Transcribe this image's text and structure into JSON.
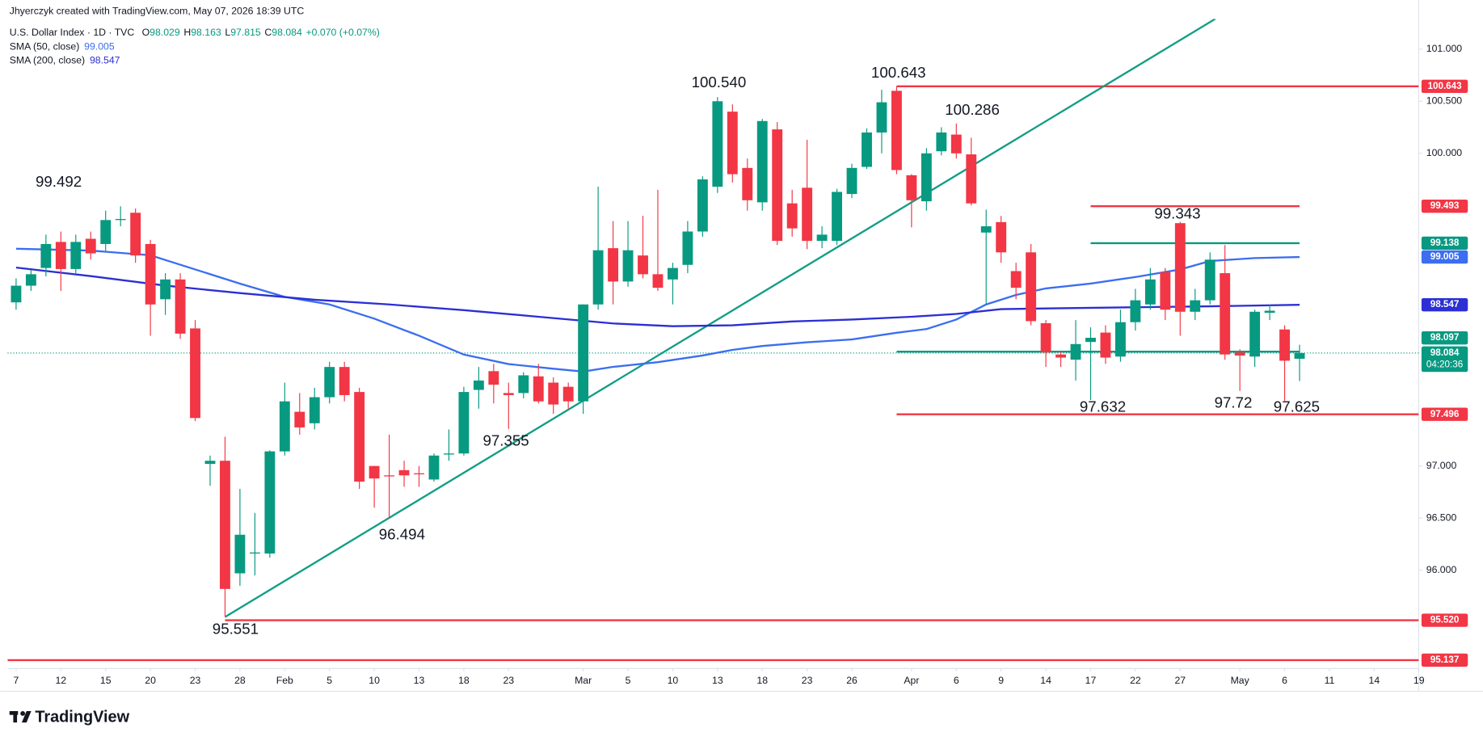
{
  "header": {
    "credit": "Jhyerczyk created with TradingView.com, May 07, 2026 18:39 UTC",
    "symbol": "U.S. Dollar Index · 1D · TVC",
    "ohlc_labels": [
      "O",
      "H",
      "L",
      "C"
    ],
    "change": "+0.070 (+0.07%)",
    "countdown": "04:20:36",
    "logo": "TradingView"
  },
  "chart_data": {
    "type": "candlestick",
    "colors": {
      "up": "#089981",
      "down": "#f23645"
    },
    "open": [
      98.57,
      98.73,
      98.9,
      99.15,
      98.89,
      99.18,
      99.13,
      99.36,
      99.43,
      99.13,
      98.6,
      98.79,
      98.32,
      97.02,
      97.05,
      95.97,
      96.16,
      96.16,
      97.14,
      97.52,
      97.41,
      97.66,
      97.95,
      97.71,
      97.0,
      96.91,
      96.96,
      96.93,
      96.87,
      97.11,
      97.12,
      97.73,
      97.91,
      97.7,
      97.7,
      97.86,
      97.8,
      97.76,
      97.62,
      98.55,
      99.09,
      98.77,
      99.02,
      98.84,
      98.79,
      98.93,
      99.25,
      99.68,
      100.4,
      99.86,
      99.53,
      100.23,
      99.52,
      99.67,
      99.16,
      99.16,
      99.61,
      99.87,
      100.2,
      100.6,
      99.79,
      99.54,
      100.02,
      100.18,
      99.99,
      99.24,
      99.34,
      98.87,
      99.05,
      98.37,
      98.07,
      98.02,
      98.19,
      98.28,
      98.05,
      98.38,
      98.55,
      98.86,
      99.33,
      98.48,
      98.59,
      98.85,
      98.09,
      98.05,
      98.47,
      98.31,
      98.029
    ],
    "high": [
      98.8,
      98.88,
      99.22,
      99.25,
      99.22,
      99.25,
      99.45,
      99.492,
      99.47,
      99.17,
      98.85,
      98.85,
      98.4,
      97.1,
      97.28,
      96.78,
      96.55,
      97.15,
      97.8,
      97.7,
      97.75,
      98.0,
      98.0,
      97.75,
      97.0,
      97.3,
      97.05,
      97.0,
      97.12,
      97.35,
      97.76,
      97.95,
      97.98,
      97.8,
      97.9,
      97.98,
      97.85,
      97.8,
      98.55,
      99.68,
      99.35,
      99.35,
      99.4,
      99.65,
      98.95,
      99.35,
      99.78,
      100.54,
      100.47,
      99.95,
      100.33,
      100.3,
      99.65,
      100.13,
      99.3,
      99.66,
      99.9,
      100.24,
      100.61,
      100.643,
      99.8,
      100.05,
      100.25,
      100.286,
      100.15,
      99.46,
      99.4,
      98.95,
      99.13,
      98.4,
      98.1,
      98.4,
      98.33,
      98.35,
      98.5,
      98.7,
      98.9,
      98.9,
      99.343,
      98.7,
      99.05,
      99.12,
      98.12,
      98.5,
      98.55,
      98.35,
      98.163
    ],
    "low": [
      98.5,
      98.68,
      98.82,
      98.68,
      98.85,
      98.98,
      99.05,
      99.3,
      98.95,
      98.25,
      98.45,
      98.22,
      97.43,
      96.81,
      95.551,
      95.85,
      95.95,
      96.12,
      97.1,
      97.3,
      97.35,
      97.6,
      97.62,
      96.78,
      96.6,
      96.494,
      96.8,
      96.8,
      96.85,
      97.05,
      97.1,
      97.55,
      97.6,
      97.355,
      97.65,
      97.6,
      97.5,
      97.55,
      97.5,
      98.5,
      98.55,
      98.72,
      98.8,
      98.68,
      98.55,
      98.85,
      99.2,
      99.62,
      99.72,
      99.45,
      99.45,
      99.12,
      99.2,
      99.08,
      99.09,
      99.12,
      99.57,
      99.85,
      100.0,
      99.8,
      99.29,
      99.45,
      99.98,
      99.95,
      99.5,
      98.55,
      98.95,
      98.6,
      98.35,
      97.95,
      97.95,
      97.82,
      97.632,
      97.98,
      98.0,
      98.3,
      98.5,
      98.4,
      98.25,
      98.4,
      98.55,
      98.02,
      97.72,
      97.95,
      98.4,
      97.625,
      97.815
    ],
    "close": [
      98.73,
      98.84,
      99.13,
      98.89,
      99.15,
      99.04,
      99.36,
      99.37,
      99.02,
      98.55,
      98.79,
      98.27,
      97.46,
      97.05,
      95.82,
      96.34,
      96.17,
      97.14,
      97.62,
      97.37,
      97.66,
      97.95,
      97.68,
      96.85,
      96.88,
      96.9,
      96.91,
      96.92,
      97.1,
      97.12,
      97.71,
      97.82,
      97.78,
      97.68,
      97.87,
      97.62,
      97.59,
      97.62,
      98.55,
      99.07,
      98.77,
      99.07,
      98.84,
      98.71,
      98.9,
      99.25,
      99.75,
      100.5,
      99.8,
      99.55,
      100.31,
      99.16,
      99.28,
      99.16,
      99.22,
      99.63,
      99.86,
      100.2,
      100.49,
      99.84,
      99.55,
      100.0,
      100.2,
      100.0,
      99.52,
      99.3,
      99.05,
      98.71,
      98.39,
      98.09,
      98.04,
      98.17,
      98.23,
      98.04,
      98.38,
      98.59,
      98.79,
      98.5,
      98.48,
      98.59,
      98.98,
      98.07,
      98.06,
      98.48,
      98.49,
      98.01,
      98.084
    ],
    "xlim": [
      -0.57,
      93.98
    ],
    "ylim": [
      95.056,
      101.29
    ],
    "yticks": [
      {
        "value": 96,
        "label": "96.000"
      },
      {
        "value": 96.5,
        "label": "96.500"
      },
      {
        "value": 97,
        "label": "97.000"
      },
      {
        "value": 100,
        "label": "100.000"
      },
      {
        "value": 100.5,
        "label": "100.500"
      },
      {
        "value": 101,
        "label": "101.000"
      }
    ],
    "xticks": [
      {
        "value": 0,
        "label": "7"
      },
      {
        "value": 3,
        "label": "12"
      },
      {
        "value": 6,
        "label": "15"
      },
      {
        "value": 9,
        "label": "20"
      },
      {
        "value": 12,
        "label": "23"
      },
      {
        "value": 15,
        "label": "28"
      },
      {
        "value": 18,
        "label": "Feb"
      },
      {
        "value": 21,
        "label": "5"
      },
      {
        "value": 24,
        "label": "10"
      },
      {
        "value": 27,
        "label": "13"
      },
      {
        "value": 30,
        "label": "18"
      },
      {
        "value": 33,
        "label": "23"
      },
      {
        "value": 38,
        "label": "Mar"
      },
      {
        "value": 41,
        "label": "5"
      },
      {
        "value": 44,
        "label": "10"
      },
      {
        "value": 47,
        "label": "13"
      },
      {
        "value": 50,
        "label": "18"
      },
      {
        "value": 53,
        "label": "23"
      },
      {
        "value": 56,
        "label": "26"
      },
      {
        "value": 60,
        "label": "Apr"
      },
      {
        "value": 63,
        "label": "6"
      },
      {
        "value": 66,
        "label": "9"
      },
      {
        "value": 69,
        "label": "14"
      },
      {
        "value": 72,
        "label": "17"
      },
      {
        "value": 75,
        "label": "22"
      },
      {
        "value": 78,
        "label": "27"
      },
      {
        "value": 82,
        "label": "May"
      },
      {
        "value": 85,
        "label": "6"
      },
      {
        "value": 88,
        "label": "11"
      },
      {
        "value": 91,
        "label": "14"
      },
      {
        "value": 94,
        "label": "19"
      }
    ],
    "series": [
      {
        "name": "SMA (50, close)",
        "color": "#3b6ef0",
        "x": [
          0,
          5,
          9,
          12,
          15,
          18,
          21,
          24,
          27,
          30,
          33,
          36,
          38,
          40,
          43,
          46,
          48,
          50,
          53,
          56,
          59,
          61,
          63,
          65,
          67,
          69,
          72,
          75,
          78,
          80,
          83,
          86
        ],
        "values": [
          99.085,
          99.067,
          99.022,
          98.886,
          98.75,
          98.623,
          98.55,
          98.414,
          98.25,
          98.069,
          97.978,
          97.933,
          97.906,
          97.951,
          97.996,
          98.06,
          98.114,
          98.151,
          98.187,
          98.214,
          98.278,
          98.314,
          98.405,
          98.55,
          98.641,
          98.704,
          98.75,
          98.813,
          98.886,
          98.967,
          98.995,
          99.005
        ]
      },
      {
        "name": "SMA (200, close)",
        "color": "#2b2fd4",
        "x": [
          0,
          5,
          10,
          15,
          20,
          25,
          30,
          35,
          40,
          44,
          48,
          52,
          56,
          60,
          63,
          66,
          70,
          75,
          80,
          86
        ],
        "values": [
          98.904,
          98.822,
          98.731,
          98.659,
          98.595,
          98.55,
          98.495,
          98.432,
          98.368,
          98.341,
          98.35,
          98.387,
          98.405,
          98.432,
          98.459,
          98.505,
          98.514,
          98.523,
          98.532,
          98.547
        ]
      }
    ],
    "levels": [
      {
        "value": 100.643,
        "label": "100.643",
        "color": "#f23645",
        "from": 59
      },
      {
        "value": 99.493,
        "label": "99.493",
        "color": "#f23645",
        "from": 72,
        "to": 86
      },
      {
        "value": 99.138,
        "label": "99.138",
        "color": "#089981",
        "from": 72,
        "to": 86
      },
      {
        "value": 98.097,
        "label": "98.097",
        "color": "#089981",
        "from": 59,
        "to": 86
      },
      {
        "value": 97.496,
        "label": "97.496",
        "color": "#f23645",
        "from": 59
      },
      {
        "value": 95.52,
        "label": "95.520",
        "color": "#f23645",
        "from": 14
      },
      {
        "value": 95.137,
        "label": "95.137",
        "color": "#f23645"
      }
    ],
    "trendline": {
      "color": "#129d85",
      "x": [
        14,
        80.35
      ],
      "values": [
        95.551,
        101.29
      ]
    },
    "annotations": [
      "99.492",
      "100.540",
      "100.643",
      "100.286",
      "99.343",
      "97.632",
      "97.72",
      "97.625",
      "97.355",
      "96.494",
      "95.551"
    ]
  }
}
